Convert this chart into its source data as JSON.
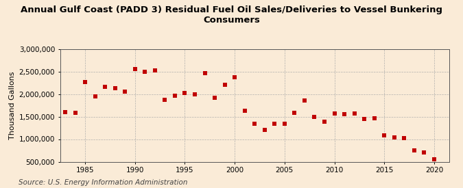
{
  "title": "Annual Gulf Coast (PADD 3) Residual Fuel Oil Sales/Deliveries to Vessel Bunkering Consumers",
  "ylabel": "Thousand Gallons",
  "source": "Source: U.S. Energy Information Administration",
  "years": [
    1983,
    1984,
    1985,
    1986,
    1987,
    1988,
    1989,
    1990,
    1991,
    1992,
    1993,
    1994,
    1995,
    1996,
    1997,
    1998,
    1999,
    2000,
    2001,
    2002,
    2003,
    2004,
    2005,
    2006,
    2007,
    2008,
    2009,
    2010,
    2011,
    2012,
    2013,
    2014,
    2015,
    2016,
    2017,
    2018,
    2019,
    2020
  ],
  "values": [
    1600000,
    1580000,
    2260000,
    1950000,
    2160000,
    2130000,
    2060000,
    2560000,
    2500000,
    2520000,
    1870000,
    1960000,
    2020000,
    2000000,
    2460000,
    1920000,
    2200000,
    2370000,
    1630000,
    1340000,
    1200000,
    1340000,
    1340000,
    1580000,
    1860000,
    1490000,
    1380000,
    1570000,
    1560000,
    1570000,
    1440000,
    1460000,
    1080000,
    1040000,
    1030000,
    755000,
    705000,
    560000
  ],
  "marker_color": "#c00000",
  "marker_size": 18,
  "background_color": "#faebd7",
  "grid_color": "#aaaaaa",
  "ylim": [
    500000,
    3000000
  ],
  "xlim": [
    1982.5,
    2021.5
  ],
  "yticks": [
    500000,
    1000000,
    1500000,
    2000000,
    2500000,
    3000000
  ],
  "ytick_labels": [
    "500,000",
    "1,000,000",
    "1,500,000",
    "2,000,000",
    "2,500,000",
    "3,000,000"
  ],
  "xticks": [
    1985,
    1990,
    1995,
    2000,
    2005,
    2010,
    2015,
    2020
  ],
  "title_fontsize": 9.5,
  "axis_fontsize": 8,
  "tick_fontsize": 7.5,
  "source_fontsize": 7.5
}
